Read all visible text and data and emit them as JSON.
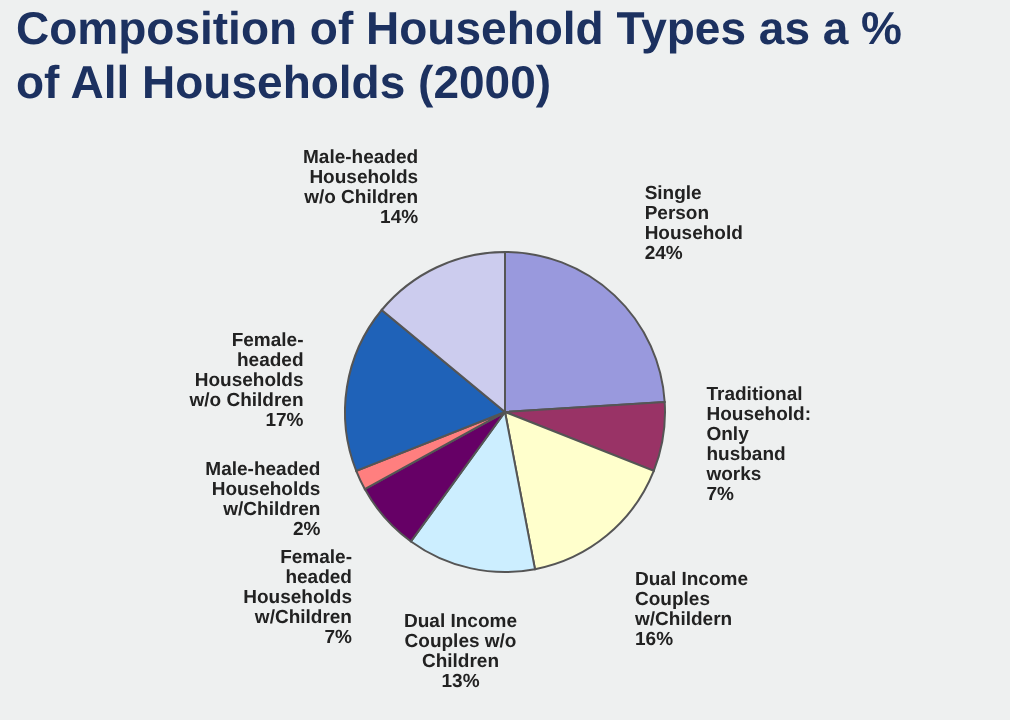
{
  "chart_data": {
    "type": "pie",
    "title": [
      "Composition of Household Types as a %",
      "of All Households (2000)"
    ],
    "categories": [
      "Single\nPerson\nHousehold",
      "Traditional\nHousehold:\nOnly\nhusband\nworks",
      "Dual Income\nCouples\nw/Childern",
      "Dual Income\nCouples w/o\nChildren",
      "Female-\nheaded\nHouseholds\nw/Children",
      "Male-headed\nHouseholds\nw/Children",
      "Female-\nheaded\nHouseholds\nw/o Children",
      "Male-headed\nHouseholds\nw/o Children"
    ],
    "values": [
      24,
      7,
      16,
      13,
      7,
      2,
      17,
      14
    ],
    "value_labels": [
      "24%",
      "7%",
      "16%",
      "13%",
      "7%",
      "2%",
      "17%",
      "14%"
    ],
    "colors": [
      "#9999dd",
      "#993366",
      "#ffffcc",
      "#cceeff",
      "#660066",
      "#ff7f7f",
      "#1f62b8",
      "#ccccee"
    ],
    "legend": false
  }
}
